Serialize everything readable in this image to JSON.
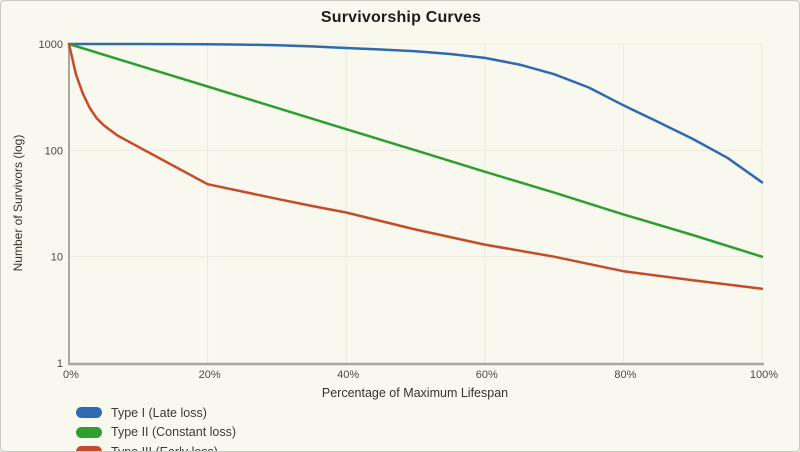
{
  "theme": {
    "background": "#f8f8ef",
    "border": "#c8c8c3",
    "grid": "#ebebdf",
    "axis": "#a8a8a2",
    "tick_color": "#4a4a46",
    "label_color": "#33332f",
    "title_color": "#1c1c1c"
  },
  "chart_data": {
    "type": "line",
    "title": "Survivorship Curves",
    "xlabel": "Percentage of Maximum Lifespan",
    "ylabel": "Number of Survivors (log)",
    "y_scale": "log",
    "xlim": [
      0,
      100
    ],
    "ylim": [
      1,
      1000
    ],
    "grid": true,
    "legend_position": "bottom-left",
    "x_ticks": {
      "values": [
        0,
        20,
        40,
        60,
        80,
        100
      ],
      "labels": [
        "0%",
        "20%",
        "40%",
        "60%",
        "80%",
        "100%"
      ]
    },
    "y_ticks": {
      "values": [
        1000,
        100,
        10,
        1
      ],
      "labels": [
        "1000",
        "100",
        "10",
        "1"
      ]
    },
    "series": [
      {
        "name": "Type I (Late loss)",
        "color": "#3069b0",
        "x": [
          0,
          5,
          10,
          15,
          20,
          25,
          30,
          35,
          40,
          45,
          50,
          55,
          60,
          65,
          70,
          75,
          80,
          85,
          90,
          95,
          100
        ],
        "values": [
          1000,
          1000,
          999,
          998,
          995,
          988,
          975,
          950,
          918,
          888,
          855,
          805,
          740,
          640,
          520,
          390,
          265,
          185,
          128,
          85,
          50
        ]
      },
      {
        "name": "Type II (Constant loss)",
        "color": "#2e9e30",
        "x": [
          0,
          10,
          20,
          30,
          40,
          50,
          60,
          70,
          80,
          90,
          100
        ],
        "values": [
          1000,
          631,
          398,
          251,
          158,
          100,
          63,
          40,
          25,
          16,
          10
        ]
      },
      {
        "name": "Type III (Early loss)",
        "color": "#c74b28",
        "x": [
          0,
          1,
          2,
          3,
          4,
          5,
          7,
          10,
          15,
          20,
          25,
          30,
          35,
          40,
          50,
          60,
          70,
          80,
          90,
          100
        ],
        "values": [
          1000,
          520,
          340,
          250,
          200,
          172,
          138,
          108,
          72,
          48,
          41,
          35,
          30,
          26,
          18,
          13,
          10,
          7.3,
          6,
          5
        ]
      }
    ]
  }
}
